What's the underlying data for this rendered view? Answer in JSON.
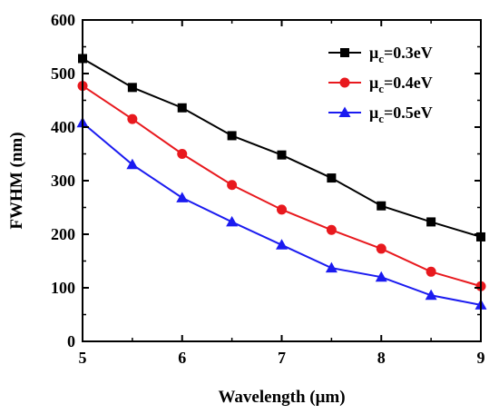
{
  "chart_data": {
    "type": "line",
    "xlabel": "Wavelength (μm)",
    "ylabel": "FWHM (nm)",
    "xlim": [
      5,
      9
    ],
    "ylim": [
      0,
      600
    ],
    "x_ticks": [
      "5",
      "6",
      "7",
      "8",
      "9"
    ],
    "y_ticks": [
      "0",
      "100",
      "200",
      "300",
      "400",
      "500",
      "600"
    ],
    "grid": false,
    "legend_position": "top-right",
    "x": [
      5.0,
      5.5,
      6.0,
      6.5,
      7.0,
      7.5,
      8.0,
      8.5,
      9.0
    ],
    "series": [
      {
        "name": "μc=0.3eV",
        "name_main": "μ",
        "name_sub": "c",
        "name_rest": "=0.3eV",
        "color": "#000000",
        "marker": "square",
        "values": [
          528,
          474,
          436,
          384,
          348,
          305,
          253,
          223,
          195
        ]
      },
      {
        "name": "μc=0.4eV",
        "name_main": "μ",
        "name_sub": "c",
        "name_rest": "=0.4eV",
        "color": "#e8191e",
        "marker": "circle",
        "values": [
          477,
          415,
          350,
          292,
          246,
          208,
          173,
          130,
          103
        ]
      },
      {
        "name": "μc=0.5eV",
        "name_main": "μ",
        "name_sub": "c",
        "name_rest": "=0.5eV",
        "color": "#1b1bf0",
        "marker": "triangle",
        "values": [
          408,
          330,
          268,
          223,
          180,
          137,
          120,
          86,
          68
        ]
      }
    ]
  }
}
